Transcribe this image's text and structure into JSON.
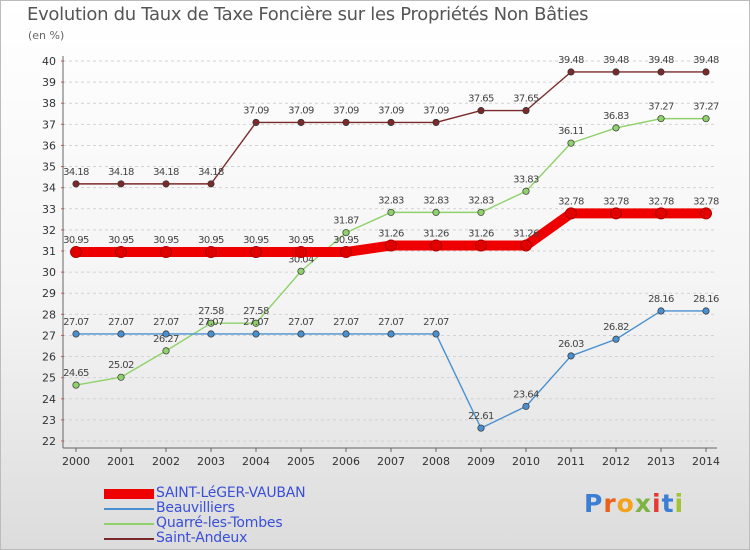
{
  "title": "Evolution du Taux de Taxe Foncière sur les Propriétés Non Bâties",
  "unit_label": "(en %)",
  "logo": {
    "letters": [
      "P",
      "r",
      "o",
      "x",
      "i",
      "t",
      "i"
    ],
    "colors": [
      "#3a7fd5",
      "#e8621b",
      "#f3a21b",
      "#7cb342",
      "#e53935",
      "#3a7fd5",
      "#a0c433"
    ]
  },
  "chart_data": {
    "type": "line",
    "title": "Evolution du Taux de Taxe Foncière sur les Propriétés Non Bâties",
    "ylabel": "(en %)",
    "xlabel": "",
    "ylim": [
      22,
      40
    ],
    "grid": "horizontal dashed",
    "x": [
      "2000",
      "2001",
      "2002",
      "2003",
      "2004",
      "2005",
      "2006",
      "2007",
      "2008",
      "2009",
      "2010",
      "2011",
      "2012",
      "2013",
      "2014"
    ],
    "y_ticks": [
      "22",
      "23",
      "24",
      "25",
      "26",
      "27",
      "28",
      "29",
      "30",
      "31",
      "32",
      "33",
      "34",
      "35",
      "36",
      "37",
      "38",
      "39",
      "40"
    ],
    "series": [
      {
        "name": "Saint-Andeux",
        "color": "#7a2a2a",
        "values": [
          34.18,
          34.18,
          34.18,
          34.18,
          37.09,
          37.09,
          37.09,
          37.09,
          37.09,
          37.65,
          37.65,
          39.48,
          39.48,
          39.48,
          39.48
        ],
        "labels": [
          "34.18",
          "34.18",
          "34.18",
          "34.18",
          "37.09",
          "37.09",
          "37.09",
          "37.09",
          "37.09",
          "37.65",
          "37.65",
          "39.48",
          "39.48",
          "39.48",
          "39.48"
        ]
      },
      {
        "name": "Quarré-les-Tombes",
        "color": "#8fd16a",
        "values": [
          24.65,
          25.02,
          26.27,
          27.58,
          27.58,
          30.04,
          31.87,
          32.83,
          32.83,
          32.83,
          33.83,
          36.11,
          36.83,
          37.27,
          37.27
        ],
        "labels": [
          "24.65",
          "25.02",
          "26.27",
          "27.58",
          "27.58",
          "30.04",
          "31.87",
          "32.83",
          "32.83",
          "32.83",
          "33.83",
          "36.11",
          "36.83",
          "37.27",
          "37.27"
        ]
      },
      {
        "name": "Beauvilliers",
        "color": "#4a90d0",
        "values": [
          27.07,
          27.07,
          27.07,
          27.07,
          27.07,
          27.07,
          27.07,
          27.07,
          27.07,
          22.61,
          23.64,
          26.03,
          26.82,
          28.16,
          28.16
        ],
        "labels": [
          "27.07",
          "27.07",
          "27.07",
          "27.07",
          "27.07",
          "27.07",
          "27.07",
          "27.07",
          "27.07",
          "22.61",
          "23.64",
          "26.03",
          "26.82",
          "28.16",
          "28.16"
        ]
      },
      {
        "name": "SAINT-LéGER-VAUBAN",
        "color": "#ee0000",
        "values": [
          30.95,
          30.95,
          30.95,
          30.95,
          30.95,
          30.95,
          30.95,
          31.26,
          31.26,
          31.26,
          31.26,
          32.78,
          32.78,
          32.78,
          32.78
        ],
        "labels": [
          "30.95",
          "30.95",
          "30.95",
          "30.95",
          "30.95",
          "30.95",
          "30.95",
          "31.26",
          "31.26",
          "31.26",
          "31.26",
          "32.78",
          "32.78",
          "32.78",
          "32.78"
        ]
      }
    ],
    "legend": [
      "SAINT-LéGER-VAUBAN",
      "Beauvilliers",
      "Quarré-les-Tombes",
      "Saint-Andeux"
    ]
  }
}
